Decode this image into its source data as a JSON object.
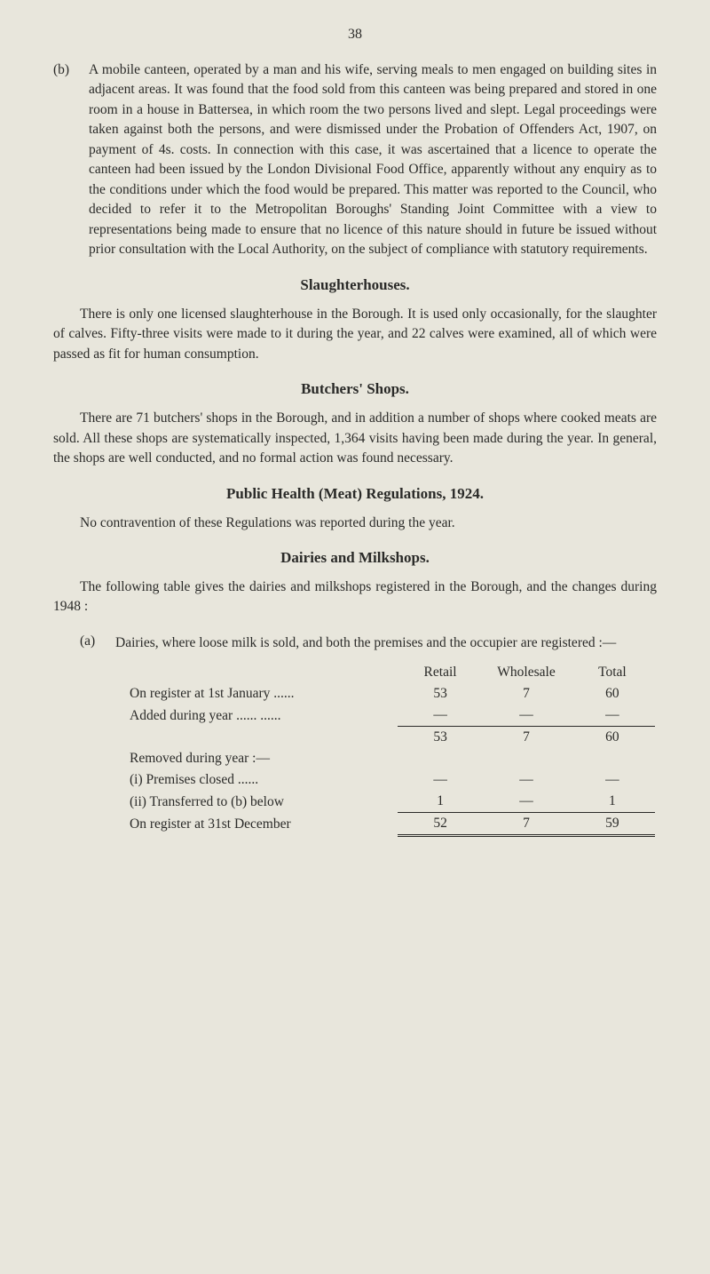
{
  "pageNumber": "38",
  "sectionB": {
    "marker": "(b)",
    "text": "A mobile canteen, operated by a man and his wife, serving meals to men engaged on building sites in adjacent areas. It was found that the food sold from this canteen was being prepared and stored in one room in a house in Battersea, in which room the two persons lived and slept. Legal proceedings were taken against both the persons, and were dismissed under the Probation of Offenders Act, 1907, on payment of 4s. costs. In connection with this case, it was ascertained that a licence to operate the canteen had been issued by the London Divisional Food Office, apparently without any enquiry as to the conditions under which the food would be prepared. This matter was reported to the Council, who decided to refer it to the Metropolitan Boroughs' Standing Joint Committee with a view to representations being made to ensure that no licence of this nature should in future be issued without prior consultation with the Local Authority, on the subject of compliance with statutory requirements."
  },
  "slaughterhouses": {
    "heading": "Slaughterhouses.",
    "text": "There is only one licensed slaughterhouse in the Borough. It is used only occasionally, for the slaughter of calves. Fifty-three visits were made to it during the year, and 22 calves were examined, all of which were passed as fit for human consumption."
  },
  "butchers": {
    "heading": "Butchers' Shops.",
    "text": "There are 71 butchers' shops in the Borough, and in addition a number of shops where cooked meats are sold. All these shops are systematically inspected, 1,364 visits having been made during the year. In general, the shops are well conducted, and no formal action was found necessary."
  },
  "meatReg": {
    "heading": "Public Health (Meat) Regulations, 1924.",
    "text": "No contravention of these Regulations was reported during the year."
  },
  "dairies": {
    "heading": "Dairies and Milkshops.",
    "intro": "The following table gives the dairies and milkshops registered in the Borough, and the changes during 1948 :",
    "subA": {
      "marker": "(a)",
      "text": "Dairies, where loose milk is sold, and both the premises and the occupier are registered :—"
    },
    "table": {
      "columns": [
        "",
        "Retail",
        "Wholesale",
        "Total"
      ],
      "rows": [
        {
          "label": "On register at 1st January ......",
          "retail": "53",
          "wholesale": "7",
          "total": "60",
          "rule": false
        },
        {
          "label": "Added during year ......      ......",
          "retail": "—",
          "wholesale": "—",
          "total": "—",
          "rule": false
        },
        {
          "label": "",
          "retail": "53",
          "wholesale": "7",
          "total": "60",
          "rule": true
        },
        {
          "label": "Removed during year :—",
          "retail": "",
          "wholesale": "",
          "total": "",
          "rule": false
        },
        {
          "label": "(i) Premises closed      ......",
          "retail": "—",
          "wholesale": "—",
          "total": "—",
          "rule": false,
          "sub": true
        },
        {
          "label": "(ii) Transferred to (b) below",
          "retail": "1",
          "wholesale": "—",
          "total": "1",
          "rule": false,
          "sub": true
        },
        {
          "label": "On register at 31st December",
          "retail": "52",
          "wholesale": "7",
          "total": "59",
          "rule": true,
          "dbl": true
        }
      ]
    }
  }
}
